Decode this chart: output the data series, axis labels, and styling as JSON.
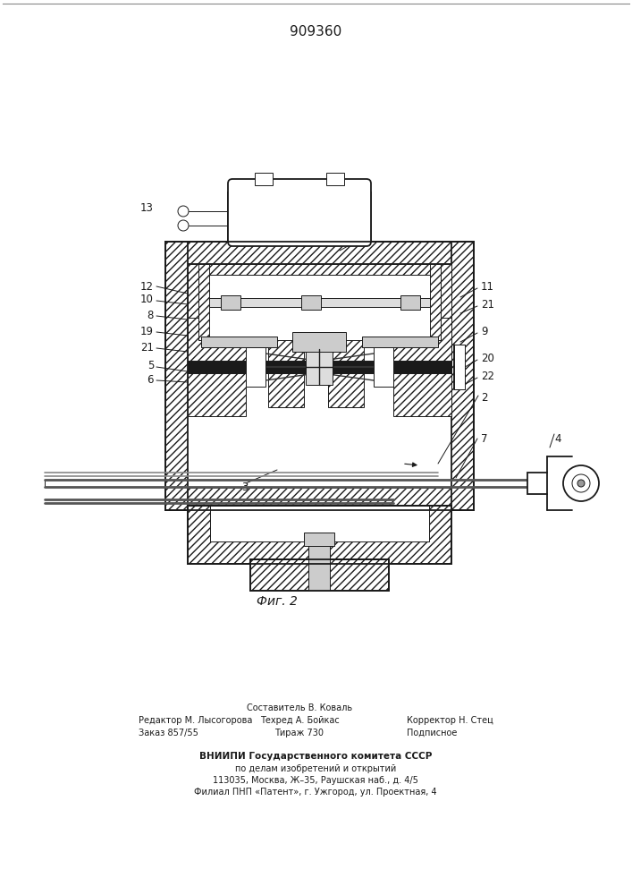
{
  "patent_number": "909360",
  "fig_label": "Фиг. 2",
  "editor_line1": "Редактор М. Лысогорова",
  "editor_line2": "Заказ 857/55",
  "composer_line1": "Составитель В. Коваль",
  "techred_line": "Техред А. Бойкас",
  "tirazh_line": "Тираж 730",
  "corrector_line": "Корректор Н. Стец",
  "podpisnoe_line": "Подписное",
  "vniipи_line1": "ВНИИПИ Государственного комитета СССР",
  "vniipи_line2": "по делам изобретений и открытий",
  "vniipи_line3": "113035, Москва, Ж–35, Раушская наб., д. 4/5",
  "vniipи_line4": "Филиал ПНП «Патент», г. Ужгород, ул. Проектная, 4",
  "bg_color": "#ffffff",
  "line_color": "#1a1a1a",
  "label_fontsize": 8.5,
  "patent_fontsize": 11,
  "fig_label_fontsize": 10
}
